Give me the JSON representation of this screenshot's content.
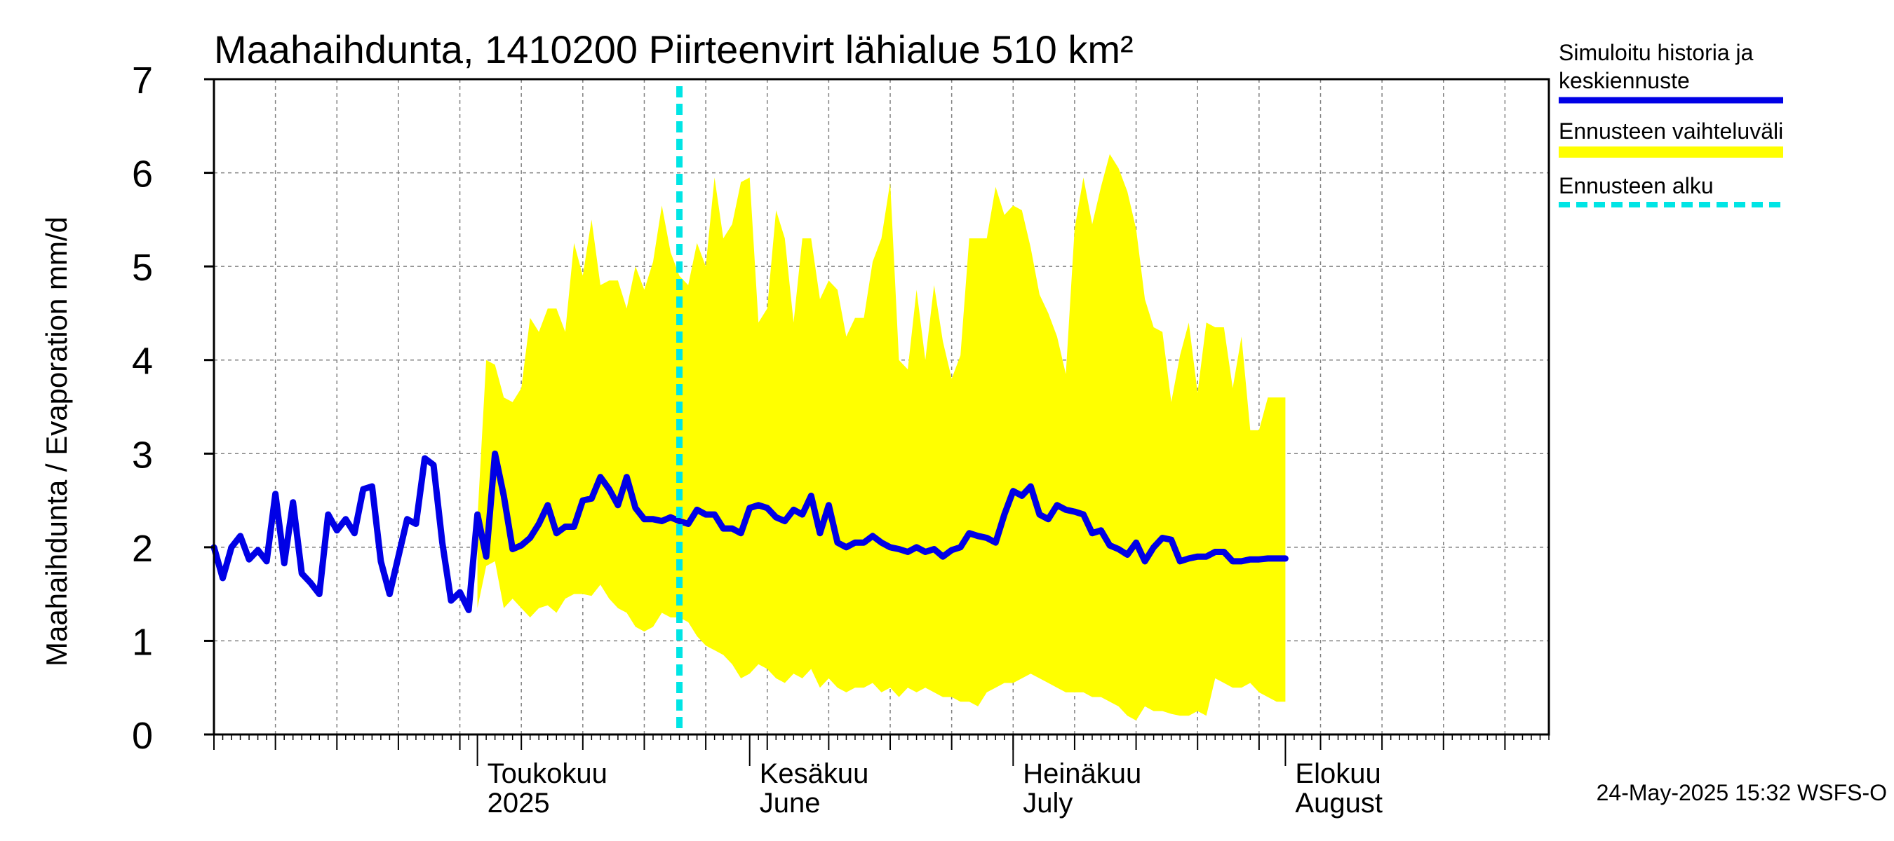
{
  "chart_data": {
    "type": "area",
    "title": "Maahaihdunta, 1410200 Piirteenvirt lähialue 510 km²",
    "ylabel": "Maahaihdunta / Evaporation   mm/d",
    "ylim": [
      0,
      7
    ],
    "yticks": [
      "0",
      "1",
      "2",
      "3",
      "4",
      "5",
      "6",
      "7"
    ],
    "xlim": [
      "2025-04-01",
      "2025-08-31"
    ],
    "x_month_labels": [
      {
        "date": "2025-05-01",
        "fi": "Toukokuu",
        "en": "2025"
      },
      {
        "date": "2025-06-01",
        "fi": "Kesäkuu",
        "en": "June"
      },
      {
        "date": "2025-07-01",
        "fi": "Heinäkuu",
        "en": "July"
      },
      {
        "date": "2025-08-01",
        "fi": "Elokuu",
        "en": "August"
      }
    ],
    "grid": true,
    "forecast_start": "2025-05-24",
    "history": {
      "name": "Simuloitu historia ja keskiennuste",
      "color": "#0000e6",
      "points": [
        [
          "2025-04-01",
          2.0
        ],
        [
          "2025-04-02",
          1.67
        ],
        [
          "2025-04-03",
          2.0
        ],
        [
          "2025-04-04",
          2.12
        ],
        [
          "2025-04-05",
          1.87
        ],
        [
          "2025-04-06",
          1.97
        ],
        [
          "2025-04-07",
          1.85
        ],
        [
          "2025-04-08",
          2.57
        ],
        [
          "2025-04-09",
          1.83
        ],
        [
          "2025-04-10",
          2.48
        ],
        [
          "2025-04-11",
          1.72
        ],
        [
          "2025-04-12",
          1.62
        ],
        [
          "2025-04-13",
          1.5
        ],
        [
          "2025-04-14",
          2.35
        ],
        [
          "2025-04-15",
          2.18
        ],
        [
          "2025-04-16",
          2.3
        ],
        [
          "2025-04-17",
          2.15
        ],
        [
          "2025-04-18",
          2.62
        ],
        [
          "2025-04-19",
          2.65
        ],
        [
          "2025-04-20",
          1.85
        ],
        [
          "2025-04-21",
          1.5
        ],
        [
          "2025-04-22",
          1.9
        ],
        [
          "2025-04-23",
          2.3
        ],
        [
          "2025-04-24",
          2.25
        ],
        [
          "2025-04-25",
          2.95
        ],
        [
          "2025-04-26",
          2.88
        ],
        [
          "2025-04-27",
          2.05
        ],
        [
          "2025-04-28",
          1.43
        ],
        [
          "2025-04-29",
          1.52
        ],
        [
          "2025-04-30",
          1.33
        ],
        [
          "2025-05-01",
          2.35
        ],
        [
          "2025-05-02",
          1.9
        ],
        [
          "2025-05-03",
          3.0
        ],
        [
          "2025-05-04",
          2.55
        ],
        [
          "2025-05-05",
          1.98
        ],
        [
          "2025-05-06",
          2.02
        ],
        [
          "2025-05-07",
          2.1
        ],
        [
          "2025-05-08",
          2.25
        ],
        [
          "2025-05-09",
          2.45
        ],
        [
          "2025-05-10",
          2.15
        ],
        [
          "2025-05-11",
          2.22
        ],
        [
          "2025-05-12",
          2.22
        ],
        [
          "2025-05-13",
          2.5
        ],
        [
          "2025-05-14",
          2.52
        ],
        [
          "2025-05-15",
          2.75
        ],
        [
          "2025-05-16",
          2.62
        ],
        [
          "2025-05-17",
          2.45
        ],
        [
          "2025-05-18",
          2.75
        ],
        [
          "2025-05-19",
          2.42
        ],
        [
          "2025-05-20",
          2.3
        ],
        [
          "2025-05-21",
          2.3
        ],
        [
          "2025-05-22",
          2.28
        ],
        [
          "2025-05-23",
          2.32
        ],
        [
          "2025-05-24",
          2.28
        ],
        [
          "2025-05-25",
          2.25
        ],
        [
          "2025-05-26",
          2.4
        ],
        [
          "2025-05-27",
          2.35
        ],
        [
          "2025-05-28",
          2.35
        ],
        [
          "2025-05-29",
          2.2
        ],
        [
          "2025-05-30",
          2.2
        ],
        [
          "2025-05-31",
          2.15
        ],
        [
          "2025-06-01",
          2.42
        ],
        [
          "2025-06-02",
          2.45
        ],
        [
          "2025-06-03",
          2.42
        ],
        [
          "2025-06-04",
          2.32
        ],
        [
          "2025-06-05",
          2.28
        ],
        [
          "2025-06-06",
          2.4
        ],
        [
          "2025-06-07",
          2.35
        ],
        [
          "2025-06-08",
          2.55
        ],
        [
          "2025-06-09",
          2.15
        ],
        [
          "2025-06-10",
          2.45
        ],
        [
          "2025-06-11",
          2.05
        ],
        [
          "2025-06-12",
          2.0
        ],
        [
          "2025-06-13",
          2.05
        ],
        [
          "2025-06-14",
          2.05
        ],
        [
          "2025-06-15",
          2.12
        ],
        [
          "2025-06-16",
          2.05
        ],
        [
          "2025-06-17",
          2.0
        ],
        [
          "2025-06-18",
          1.98
        ],
        [
          "2025-06-19",
          1.95
        ],
        [
          "2025-06-20",
          2.0
        ],
        [
          "2025-06-21",
          1.95
        ],
        [
          "2025-06-22",
          1.98
        ],
        [
          "2025-06-23",
          1.9
        ],
        [
          "2025-06-24",
          1.97
        ],
        [
          "2025-06-25",
          2.0
        ],
        [
          "2025-06-26",
          2.15
        ],
        [
          "2025-06-27",
          2.12
        ],
        [
          "2025-06-28",
          2.1
        ],
        [
          "2025-06-29",
          2.05
        ],
        [
          "2025-06-30",
          2.35
        ],
        [
          "2025-07-01",
          2.6
        ],
        [
          "2025-07-02",
          2.55
        ],
        [
          "2025-07-03",
          2.65
        ],
        [
          "2025-07-04",
          2.35
        ],
        [
          "2025-07-05",
          2.3
        ],
        [
          "2025-07-06",
          2.45
        ],
        [
          "2025-07-07",
          2.4
        ],
        [
          "2025-07-08",
          2.38
        ],
        [
          "2025-07-09",
          2.35
        ],
        [
          "2025-07-10",
          2.15
        ],
        [
          "2025-07-11",
          2.18
        ],
        [
          "2025-07-12",
          2.02
        ],
        [
          "2025-07-13",
          1.98
        ],
        [
          "2025-07-14",
          1.92
        ],
        [
          "2025-07-15",
          2.05
        ],
        [
          "2025-07-16",
          1.85
        ],
        [
          "2025-07-17",
          2.0
        ],
        [
          "2025-07-18",
          2.1
        ],
        [
          "2025-07-19",
          2.08
        ],
        [
          "2025-07-20",
          1.85
        ],
        [
          "2025-07-21",
          1.88
        ],
        [
          "2025-07-22",
          1.9
        ],
        [
          "2025-07-23",
          1.9
        ],
        [
          "2025-07-24",
          1.95
        ],
        [
          "2025-07-25",
          1.95
        ],
        [
          "2025-07-26",
          1.85
        ],
        [
          "2025-07-27",
          1.85
        ],
        [
          "2025-07-28",
          1.87
        ],
        [
          "2025-07-29",
          1.87
        ],
        [
          "2025-07-30",
          1.88
        ],
        [
          "2025-07-31",
          1.88
        ],
        [
          "2025-08-01",
          1.88
        ]
      ]
    },
    "forecast_range": {
      "name": "Ennusteen vaihteluväli",
      "color": "#ffff00",
      "points": [
        [
          "2025-05-01",
          1.35,
          2.3
        ],
        [
          "2025-05-02",
          1.8,
          4.0
        ],
        [
          "2025-05-03",
          1.85,
          3.95
        ],
        [
          "2025-05-04",
          1.35,
          3.6
        ],
        [
          "2025-05-05",
          1.45,
          3.55
        ],
        [
          "2025-05-06",
          1.35,
          3.7
        ],
        [
          "2025-05-07",
          1.25,
          4.45
        ],
        [
          "2025-05-08",
          1.35,
          4.3
        ],
        [
          "2025-05-09",
          1.38,
          4.55
        ],
        [
          "2025-05-10",
          1.3,
          4.55
        ],
        [
          "2025-05-11",
          1.45,
          4.3
        ],
        [
          "2025-05-12",
          1.5,
          5.25
        ],
        [
          "2025-05-13",
          1.5,
          4.9
        ],
        [
          "2025-05-14",
          1.48,
          5.5
        ],
        [
          "2025-05-15",
          1.6,
          4.8
        ],
        [
          "2025-05-16",
          1.45,
          4.85
        ],
        [
          "2025-05-17",
          1.35,
          4.85
        ],
        [
          "2025-05-18",
          1.3,
          4.55
        ],
        [
          "2025-05-19",
          1.15,
          5.0
        ],
        [
          "2025-05-20",
          1.1,
          4.75
        ],
        [
          "2025-05-21",
          1.15,
          5.05
        ],
        [
          "2025-05-22",
          1.3,
          5.65
        ],
        [
          "2025-05-23",
          1.25,
          5.15
        ],
        [
          "2025-05-24",
          1.25,
          4.9
        ],
        [
          "2025-05-25",
          1.2,
          4.8
        ],
        [
          "2025-05-26",
          1.05,
          5.25
        ],
        [
          "2025-05-27",
          0.95,
          5.0
        ],
        [
          "2025-05-28",
          0.9,
          5.95
        ],
        [
          "2025-05-29",
          0.85,
          5.3
        ],
        [
          "2025-05-30",
          0.75,
          5.45
        ],
        [
          "2025-05-31",
          0.6,
          5.9
        ],
        [
          "2025-06-01",
          0.65,
          5.95
        ],
        [
          "2025-06-02",
          0.75,
          4.4
        ],
        [
          "2025-06-03",
          0.7,
          4.55
        ],
        [
          "2025-06-04",
          0.6,
          5.6
        ],
        [
          "2025-06-05",
          0.55,
          5.3
        ],
        [
          "2025-06-06",
          0.65,
          4.4
        ],
        [
          "2025-06-07",
          0.6,
          5.3
        ],
        [
          "2025-06-08",
          0.7,
          5.3
        ],
        [
          "2025-06-09",
          0.5,
          4.65
        ],
        [
          "2025-06-10",
          0.6,
          4.85
        ],
        [
          "2025-06-11",
          0.5,
          4.75
        ],
        [
          "2025-06-12",
          0.45,
          4.25
        ],
        [
          "2025-06-13",
          0.5,
          4.45
        ],
        [
          "2025-06-14",
          0.5,
          4.45
        ],
        [
          "2025-06-15",
          0.55,
          5.05
        ],
        [
          "2025-06-16",
          0.45,
          5.3
        ],
        [
          "2025-06-17",
          0.5,
          5.9
        ],
        [
          "2025-06-18",
          0.4,
          4.0
        ],
        [
          "2025-06-19",
          0.5,
          3.9
        ],
        [
          "2025-06-20",
          0.45,
          4.75
        ],
        [
          "2025-06-21",
          0.5,
          4.0
        ],
        [
          "2025-06-22",
          0.45,
          4.8
        ],
        [
          "2025-06-23",
          0.4,
          4.2
        ],
        [
          "2025-06-24",
          0.4,
          3.8
        ],
        [
          "2025-06-25",
          0.35,
          4.05
        ],
        [
          "2025-06-26",
          0.35,
          5.3
        ],
        [
          "2025-06-27",
          0.3,
          5.3
        ],
        [
          "2025-06-28",
          0.45,
          5.3
        ],
        [
          "2025-06-29",
          0.5,
          5.85
        ],
        [
          "2025-06-30",
          0.55,
          5.55
        ],
        [
          "2025-07-01",
          0.55,
          5.65
        ],
        [
          "2025-07-02",
          0.6,
          5.6
        ],
        [
          "2025-07-03",
          0.65,
          5.2
        ],
        [
          "2025-07-04",
          0.6,
          4.7
        ],
        [
          "2025-07-05",
          0.55,
          4.5
        ],
        [
          "2025-07-06",
          0.5,
          4.25
        ],
        [
          "2025-07-07",
          0.45,
          3.85
        ],
        [
          "2025-07-08",
          0.45,
          5.4
        ],
        [
          "2025-07-09",
          0.45,
          5.95
        ],
        [
          "2025-07-10",
          0.4,
          5.45
        ],
        [
          "2025-07-11",
          0.4,
          5.85
        ],
        [
          "2025-07-12",
          0.35,
          6.2
        ],
        [
          "2025-07-13",
          0.3,
          6.05
        ],
        [
          "2025-07-14",
          0.2,
          5.8
        ],
        [
          "2025-07-15",
          0.15,
          5.4
        ],
        [
          "2025-07-16",
          0.3,
          4.65
        ],
        [
          "2025-07-17",
          0.25,
          4.35
        ],
        [
          "2025-07-18",
          0.25,
          4.3
        ],
        [
          "2025-07-19",
          0.22,
          3.55
        ],
        [
          "2025-07-20",
          0.2,
          4.05
        ],
        [
          "2025-07-21",
          0.2,
          4.4
        ],
        [
          "2025-07-22",
          0.25,
          3.65
        ],
        [
          "2025-07-23",
          0.2,
          4.4
        ],
        [
          "2025-07-24",
          0.6,
          4.35
        ],
        [
          "2025-07-25",
          0.55,
          4.35
        ],
        [
          "2025-07-26",
          0.5,
          3.7
        ],
        [
          "2025-07-27",
          0.5,
          4.25
        ],
        [
          "2025-07-28",
          0.55,
          3.25
        ],
        [
          "2025-07-29",
          0.45,
          3.25
        ],
        [
          "2025-07-30",
          0.4,
          3.6
        ],
        [
          "2025-07-31",
          0.35,
          3.6
        ],
        [
          "2025-08-01",
          0.35,
          3.6
        ]
      ]
    },
    "forecast_marker": {
      "name": "Ennusteen alku",
      "color": "#00e5e5"
    },
    "legend": [
      {
        "text": "Simuloitu historia ja",
        "text2": "keskiennuste",
        "color": "#0000e6"
      },
      {
        "text": "Ennusteen vaihteluväli",
        "text2": "",
        "color": "#ffff00"
      },
      {
        "text": "Ennusteen alku",
        "text2": "",
        "color": "#00e5e5"
      }
    ],
    "legend_position": "right"
  },
  "timestamp": "24-May-2025 15:32 WSFS-O"
}
